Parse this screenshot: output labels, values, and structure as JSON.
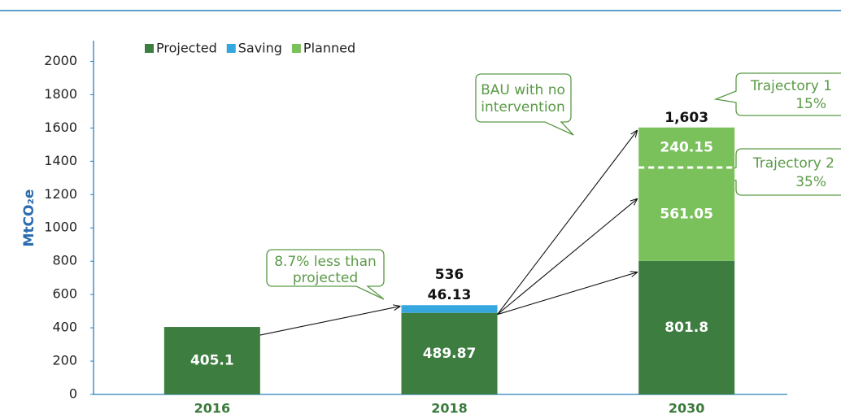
{
  "chart_data": {
    "type": "stacked_bar",
    "y_label": "MtCO₂e",
    "categories": [
      "2016",
      "2018",
      "2030"
    ],
    "series": [
      {
        "name": "Projected",
        "color": "#3e7d40",
        "values": [
          405.1,
          489.87,
          801.8
        ]
      },
      {
        "name": "Saving",
        "color": "#36a6df",
        "values": [
          null,
          46.13,
          null
        ],
        "label_position": "above"
      },
      {
        "name": "Planned",
        "color": "#7bc15b",
        "values": [
          null,
          null,
          561.05
        ]
      },
      {
        "color": "#7bc15b",
        "values": [
          null,
          null,
          240.15
        ],
        "dashed_divider": true
      }
    ],
    "totals": [
      null,
      536,
      1603
    ],
    "total_labels": [
      null,
      "536",
      "1,603"
    ],
    "annotations": [
      {
        "lines": [
          "8.7% less than",
          "projected"
        ]
      },
      {
        "lines": [
          "BAU with no",
          "intervention"
        ]
      },
      {
        "lines": [
          "Trajectory 1",
          "15%"
        ]
      },
      {
        "lines": [
          "Trajectory 2",
          "35%"
        ]
      }
    ],
    "ylim": [
      0,
      2100
    ],
    "yticks": [
      0,
      200,
      400,
      600,
      800,
      1000,
      1200,
      1400,
      1600,
      1800,
      2000
    ]
  }
}
